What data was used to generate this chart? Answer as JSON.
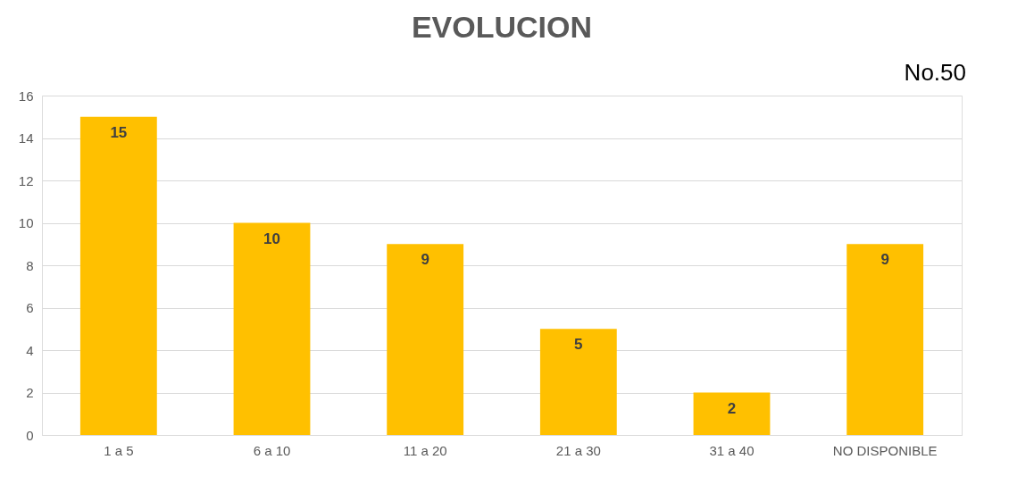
{
  "chart_data": {
    "type": "bar",
    "title": "EVOLUCION",
    "annotations": [
      "No.50"
    ],
    "categories": [
      "1 a 5",
      "6 a 10",
      "11 a 20",
      "21 a 30",
      "31 a 40",
      "NO DISPONIBLE"
    ],
    "values": [
      15,
      10,
      9,
      5,
      2,
      9
    ],
    "color": "#ffc000",
    "ylim": [
      0,
      16
    ],
    "yticks": [
      0,
      2,
      4,
      6,
      8,
      10,
      12,
      14,
      16
    ],
    "grid": "y",
    "data_labels": true
  }
}
